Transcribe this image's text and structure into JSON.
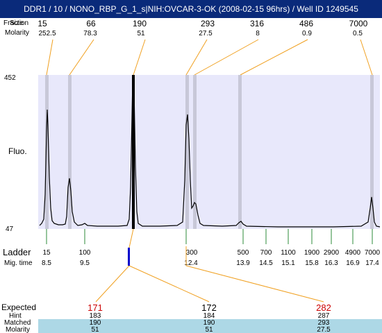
{
  "title": "DDR1 / 10 / NONO_RBP_G_1_s|NIH:OVCAR-3-OK (2008-02-15 96hrs) / Well ID 1249545",
  "header": {
    "row1_label": "Fraction",
    "row1_overlap_label": "Size",
    "row2_label": "Molarity"
  },
  "peaks": [
    {
      "size": "15",
      "molarity": "252.5"
    },
    {
      "size": "66",
      "molarity": "78.3"
    },
    {
      "size": "190",
      "molarity": "51"
    },
    {
      "size": "293",
      "molarity": "27.5"
    },
    {
      "size": "316",
      "molarity": "8"
    },
    {
      "size": "486",
      "molarity": "0.9"
    },
    {
      "size": "7000",
      "molarity": "0.5"
    }
  ],
  "y_axis": {
    "label": "Fluo.",
    "max": "452",
    "min": "47"
  },
  "ladder": {
    "label": "Ladder",
    "time_label": "Mig. time",
    "marks": [
      {
        "size": "15",
        "time": "8.5"
      },
      {
        "size": "100",
        "time": "9.5"
      },
      {
        "size": "300",
        "time": "12.4"
      },
      {
        "size": "500",
        "time": "13.9"
      },
      {
        "size": "700",
        "time": "14.5"
      },
      {
        "size": "1100",
        "time": "15.1"
      },
      {
        "size": "1900",
        "time": "15.8"
      },
      {
        "size": "2900",
        "time": "16.3"
      },
      {
        "size": "4900",
        "time": "16.9"
      },
      {
        "size": "7000",
        "time": "17.4"
      }
    ]
  },
  "expected": {
    "label": "Expected",
    "hint_label": "Hint",
    "matched_label": "Matched",
    "molarity_label": "Molarity",
    "columns": [
      {
        "expected": "171",
        "hint": "183",
        "matched": "190",
        "molarity": "51",
        "color": "#cc0000"
      },
      {
        "expected": "172",
        "hint": "184",
        "matched": "190",
        "molarity": "51",
        "color": "#000000"
      },
      {
        "expected": "282",
        "hint": "287",
        "matched": "293",
        "molarity": "27.5",
        "color": "#cc0000"
      }
    ]
  },
  "colors": {
    "plot_background": "#e8e8fb",
    "peak_band": "#c8c8d8",
    "connector": "#f0a020",
    "ladder_tick": "#2e8b3a",
    "selected_marker": "#0000cc",
    "table_band": "#add8e6",
    "title_bar": "#0a2a7a"
  }
}
